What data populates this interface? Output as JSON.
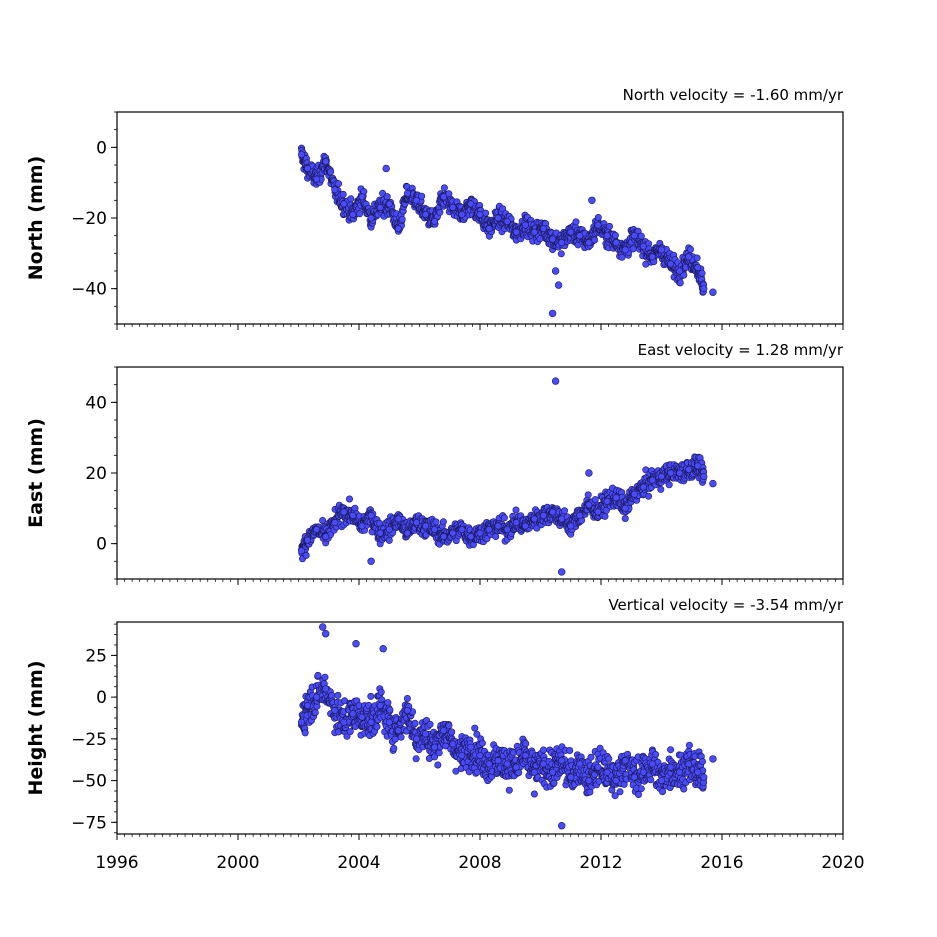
{
  "chart_data": [
    {
      "type": "scatter",
      "title": "North velocity = -1.60 mm/yr",
      "ylabel": "North (mm)",
      "xlim": [
        1996,
        2020
      ],
      "ylim": [
        -50,
        10
      ],
      "yticks": [
        0,
        -20,
        -40
      ],
      "xticks": [
        1996,
        2000,
        2004,
        2008,
        2012,
        2016,
        2020
      ],
      "show_xticklabels": false,
      "color": "#4a4aff",
      "series": [
        {
          "x": [
            2002.1,
            2002.3,
            2002.6,
            2002.9,
            2003.2,
            2003.5,
            2003.8,
            2004.1,
            2004.4,
            2004.7,
            2005.0,
            2005.3,
            2005.6,
            2005.9,
            2006.2,
            2006.5,
            2006.8,
            2007.1,
            2007.4,
            2007.7,
            2008.0,
            2008.3,
            2008.6,
            2008.9,
            2009.2,
            2009.5,
            2009.8,
            2010.1,
            2010.4,
            2010.7,
            2011.0,
            2011.3,
            2011.6,
            2011.9,
            2012.2,
            2012.5,
            2012.8,
            2013.1,
            2013.4,
            2013.7,
            2014.0,
            2014.3,
            2014.6,
            2014.9,
            2015.2,
            2015.4
          ],
          "y": [
            -2,
            -6,
            -9,
            -4,
            -12,
            -16,
            -19,
            -14,
            -20,
            -17,
            -16,
            -23,
            -13,
            -15,
            -19,
            -21,
            -14,
            -17,
            -19,
            -16,
            -19,
            -23,
            -20,
            -21,
            -24,
            -22,
            -24,
            -23,
            -26,
            -27,
            -24,
            -25,
            -27,
            -22,
            -25,
            -27,
            -29,
            -25,
            -28,
            -31,
            -29,
            -33,
            -35,
            -31,
            -34,
            -40
          ],
          "outliers_x": [
            2010.4,
            2010.5,
            2010.6,
            2015.7,
            2004.9,
            2011.7
          ],
          "outliers_y": [
            -47,
            -35,
            -39,
            -41,
            -6,
            -15
          ]
        }
      ]
    },
    {
      "type": "scatter",
      "title": "East velocity = 1.28 mm/yr",
      "ylabel": "East (mm)",
      "xlim": [
        1996,
        2020
      ],
      "ylim": [
        -10,
        50
      ],
      "yticks": [
        0,
        20,
        40
      ],
      "xticks": [
        1996,
        2000,
        2004,
        2008,
        2012,
        2016,
        2020
      ],
      "show_xticklabels": false,
      "color": "#4a4aff",
      "series": [
        {
          "x": [
            2002.1,
            2002.3,
            2002.6,
            2002.9,
            2003.2,
            2003.5,
            2003.8,
            2004.1,
            2004.4,
            2004.7,
            2005.0,
            2005.3,
            2005.6,
            2005.9,
            2006.2,
            2006.5,
            2006.8,
            2007.1,
            2007.4,
            2007.7,
            2008.0,
            2008.3,
            2008.6,
            2008.9,
            2009.2,
            2009.5,
            2009.8,
            2010.1,
            2010.4,
            2010.7,
            2011.0,
            2011.3,
            2011.6,
            2011.9,
            2012.2,
            2012.5,
            2012.8,
            2013.1,
            2013.4,
            2013.7,
            2014.0,
            2014.3,
            2014.6,
            2014.9,
            2015.2,
            2015.4
          ],
          "y": [
            -2,
            1,
            4,
            2,
            6,
            9,
            8,
            5,
            8,
            3,
            4,
            7,
            3,
            6,
            5,
            4,
            2,
            3,
            4,
            2,
            3,
            4,
            5,
            4,
            6,
            5,
            7,
            8,
            9,
            7,
            5,
            8,
            11,
            9,
            12,
            13,
            10,
            14,
            16,
            18,
            19,
            20,
            20,
            21,
            22,
            19
          ],
          "outliers_x": [
            2010.5,
            2010.7,
            2011.6,
            2004.4,
            2015.7
          ],
          "outliers_y": [
            46,
            -8,
            20,
            -5,
            17
          ]
        }
      ]
    },
    {
      "type": "scatter",
      "title": "Vertical velocity = -3.54 mm/yr",
      "ylabel": "Height (mm)",
      "xlim": [
        1996,
        2020
      ],
      "ylim": [
        -82,
        45
      ],
      "yticks": [
        25,
        0,
        -25,
        -50,
        -75
      ],
      "xticks": [
        1996,
        2000,
        2004,
        2008,
        2012,
        2016,
        2020
      ],
      "xticklabels": [
        "1996",
        "2000",
        "2004",
        "2008",
        "2012",
        "2016",
        "2020"
      ],
      "show_xticklabels": true,
      "color": "#4a4aff",
      "series": [
        {
          "x": [
            2002.1,
            2002.3,
            2002.6,
            2002.9,
            2003.2,
            2003.5,
            2003.8,
            2004.1,
            2004.4,
            2004.7,
            2005.0,
            2005.3,
            2005.6,
            2005.9,
            2006.2,
            2006.5,
            2006.8,
            2007.1,
            2007.4,
            2007.7,
            2008.0,
            2008.3,
            2008.6,
            2008.9,
            2009.2,
            2009.5,
            2009.8,
            2010.1,
            2010.4,
            2010.7,
            2011.0,
            2011.3,
            2011.6,
            2011.9,
            2012.2,
            2012.5,
            2012.8,
            2013.1,
            2013.4,
            2013.7,
            2014.0,
            2014.3,
            2014.6,
            2014.9,
            2015.2,
            2015.4
          ],
          "y": [
            -15,
            -5,
            0,
            5,
            -8,
            -15,
            -10,
            -12,
            -15,
            -5,
            -15,
            -20,
            -8,
            -25,
            -22,
            -30,
            -20,
            -28,
            -35,
            -30,
            -35,
            -40,
            -38,
            -40,
            -42,
            -35,
            -45,
            -40,
            -45,
            -38,
            -48,
            -40,
            -50,
            -42,
            -45,
            -50,
            -38,
            -48,
            -45,
            -40,
            -50,
            -42,
            -45,
            -40,
            -45,
            -48
          ],
          "outliers_x": [
            2002.8,
            2002.9,
            2003.9,
            2004.8,
            2010.7,
            2015.7
          ],
          "outliers_y": [
            42,
            38,
            32,
            29,
            -77,
            -37
          ]
        }
      ]
    }
  ]
}
